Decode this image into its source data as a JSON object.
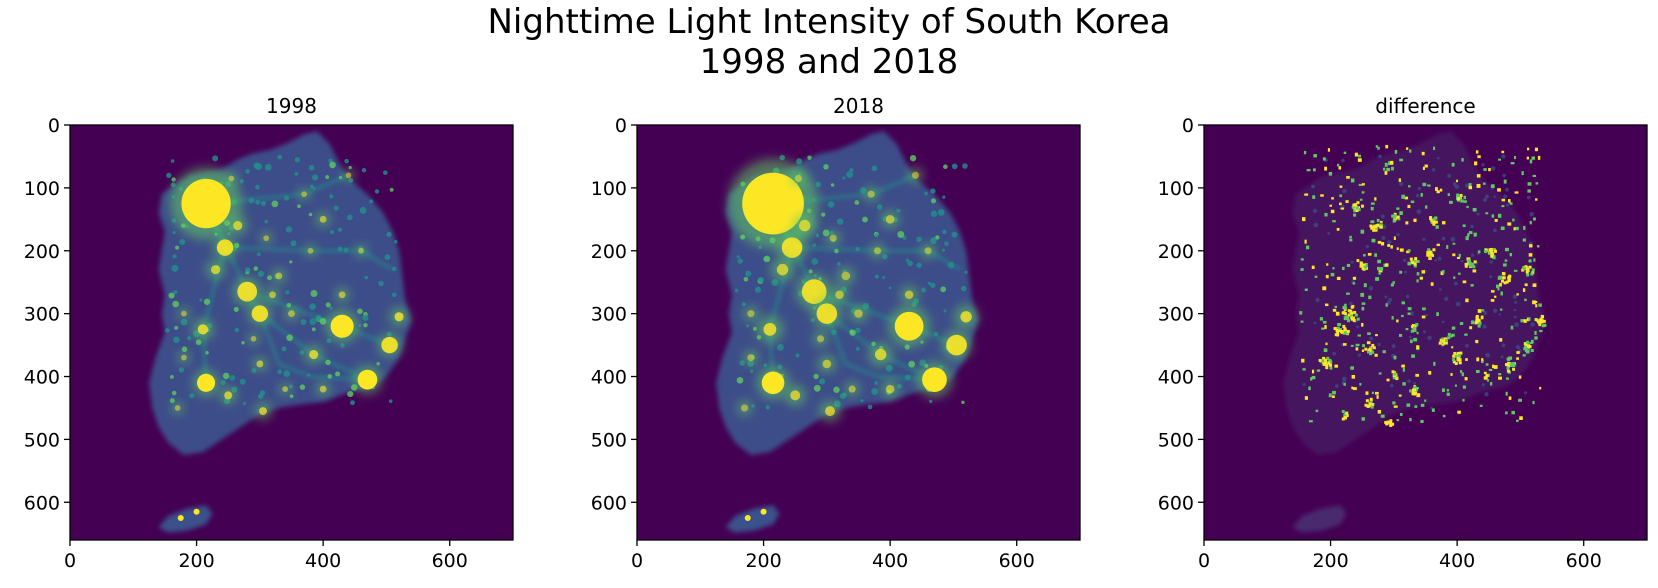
{
  "figure": {
    "title": "Nighttime Light Intensity of South Korea\n1998 and 2018"
  },
  "colors": {
    "background": "#440154",
    "low": "#3b518b",
    "mid": "#21918c",
    "high": "#5ec962",
    "peak": "#fde725"
  },
  "chart_data": [
    {
      "type": "heatmap",
      "title": "1998",
      "colormap": "viridis",
      "xlim": [
        0,
        700
      ],
      "ylim": [
        660,
        0
      ],
      "x_ticks": [
        0,
        200,
        400,
        600
      ],
      "y_ticks": [
        0,
        100,
        200,
        300,
        400,
        500,
        600
      ],
      "grid": false
    },
    {
      "type": "heatmap",
      "title": "2018",
      "colormap": "viridis",
      "xlim": [
        0,
        700
      ],
      "ylim": [
        660,
        0
      ],
      "x_ticks": [
        0,
        200,
        400,
        600
      ],
      "y_ticks": [
        0,
        100,
        200,
        300,
        400,
        500,
        600
      ],
      "grid": false
    },
    {
      "type": "heatmap",
      "title": "difference",
      "colormap": "viridis",
      "xlim": [
        0,
        700
      ],
      "ylim": [
        660,
        0
      ],
      "x_ticks": [
        0,
        200,
        400,
        600
      ],
      "y_ticks": [
        0,
        100,
        200,
        300,
        400,
        500,
        600
      ],
      "grid": false
    }
  ]
}
